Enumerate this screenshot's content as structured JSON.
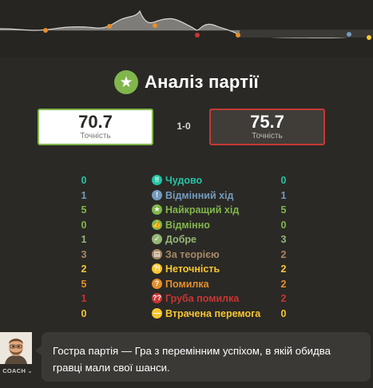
{
  "colors": {
    "background": "#2a2926",
    "accent_green": "#81b64c",
    "blunder_red": "#c33a32"
  },
  "header": {
    "title": "Аналіз партії",
    "title_icon": "star-icon"
  },
  "accuracy": {
    "white": {
      "value": "70.7",
      "label": "Точність"
    },
    "black": {
      "value": "75.7",
      "label": "Точність"
    },
    "result": "1-0"
  },
  "stats": [
    {
      "label": "Чудово",
      "white": "0",
      "black": "0",
      "icon": "brilliant-icon",
      "glyph": "‼",
      "color": "#26c2a3"
    },
    {
      "label": "Відмінний хід",
      "white": "1",
      "black": "1",
      "icon": "great-move-icon",
      "glyph": "!",
      "color": "#749bbf"
    },
    {
      "label": "Найкращий хід",
      "white": "5",
      "black": "5",
      "icon": "best-move-icon",
      "glyph": "★",
      "color": "#81b64c"
    },
    {
      "label": "Відмінно",
      "white": "0",
      "black": "0",
      "icon": "excellent-icon",
      "glyph": "👍",
      "color": "#81b64c"
    },
    {
      "label": "Добре",
      "white": "1",
      "black": "3",
      "icon": "good-icon",
      "glyph": "✓",
      "color": "#95b776"
    },
    {
      "label": "За теорією",
      "white": "3",
      "black": "2",
      "icon": "book-icon",
      "glyph": "▤",
      "color": "#a88865"
    },
    {
      "label": "Неточність",
      "white": "2",
      "black": "2",
      "icon": "inaccuracy-icon",
      "glyph": "?!",
      "color": "#f7c631"
    },
    {
      "label": "Помилка",
      "white": "5",
      "black": "2",
      "icon": "mistake-icon",
      "glyph": "?",
      "color": "#e58f2a"
    },
    {
      "label": "Груба помилка",
      "white": "1",
      "black": "2",
      "icon": "blunder-icon",
      "glyph": "??",
      "color": "#ca3431"
    },
    {
      "label": "Втрачена перемога",
      "white": "0",
      "black": "0",
      "icon": "miss-icon",
      "glyph": "—",
      "color": "#f7c631"
    }
  ],
  "coach": {
    "label": "COACH",
    "message": "Гостра партія — Гра з перемінним успіхом, в якій обидва гравці мали свої шанси."
  }
}
